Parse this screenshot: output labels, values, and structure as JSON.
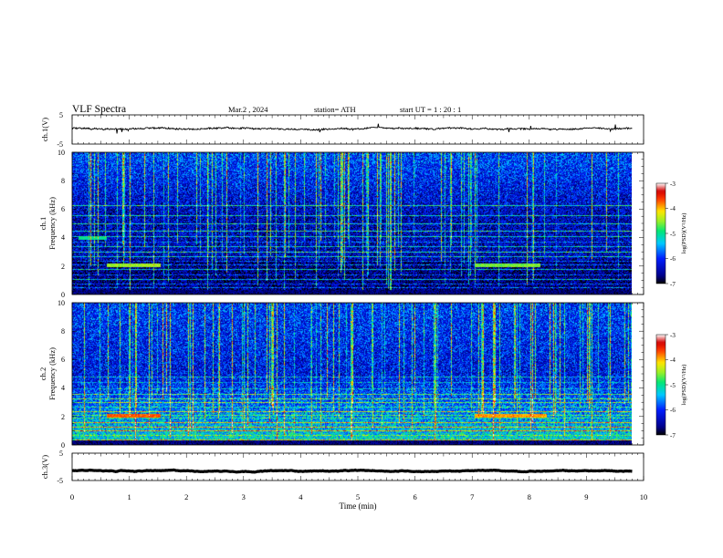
{
  "header": {
    "title": "VLF  Spectra",
    "date": "Mar.2  , 2024",
    "station": "station= ATH",
    "start": "start  UT  =   1  : 20 : 1"
  },
  "chart_data": [
    {
      "id": "ch1-waveform",
      "type": "line",
      "ylabel": "ch.1(V)",
      "ylim": [
        -5,
        5
      ],
      "yticks": [
        "5",
        "-5"
      ],
      "xlim": [
        0,
        10
      ],
      "data_extent_min": [
        0,
        9.8
      ],
      "baseline_v": 0.3,
      "noise_amplitude_v": 0.5
    },
    {
      "id": "ch1-spectrogram",
      "type": "heatmap",
      "ylabel": "ch.1\nFrequency  (kHz)",
      "ylim": [
        0,
        10
      ],
      "yticks": [
        "0",
        "2",
        "4",
        "6",
        "8",
        "10"
      ],
      "xlim": [
        0,
        10
      ],
      "colorbar": {
        "label": "log(PSD)(V²/Hz)",
        "range": [
          -7,
          -3
        ],
        "ticks": [
          "-3",
          "-4",
          "-5",
          "-6",
          "-7"
        ]
      },
      "horizontal_lines_khz": [
        0.3,
        0.5,
        0.8,
        1.1,
        1.4,
        1.8,
        2.1,
        2.4,
        2.7,
        3.0,
        3.4,
        3.7,
        4.1,
        4.5,
        5.0,
        5.6,
        6.3
      ],
      "bright_segments": [
        {
          "t_min": [
            0.6,
            1.55
          ],
          "khz": 2.1,
          "level": -4.5
        },
        {
          "t_min": [
            7.05,
            8.2
          ],
          "khz": 2.1,
          "level": -4.6
        },
        {
          "t_min": [
            0.1,
            0.6
          ],
          "khz": 4.0,
          "level": -5.0
        }
      ]
    },
    {
      "id": "ch2-spectrogram",
      "type": "heatmap",
      "ylabel": "ch.2\nFrequency  (kHz)",
      "ylim": [
        0,
        10
      ],
      "yticks": [
        "0",
        "2",
        "4",
        "6",
        "8",
        "10"
      ],
      "xlim": [
        0,
        10
      ],
      "colorbar": {
        "label": "log(PSD)(V²/Hz)",
        "range": [
          -7,
          -3
        ],
        "ticks": [
          "-3",
          "-4",
          "-5",
          "-6",
          "-7"
        ]
      },
      "horizontal_lines_khz": [
        0.4,
        0.7,
        1.0,
        1.3,
        1.6,
        1.9,
        2.1,
        2.4,
        2.7,
        3.0,
        3.3,
        3.6,
        4.0,
        4.4,
        4.8
      ],
      "bright_segments": [
        {
          "t_min": [
            0.6,
            1.55
          ],
          "khz": 2.1,
          "level": -3.7
        },
        {
          "t_min": [
            7.05,
            8.3
          ],
          "khz": 2.1,
          "level": -3.9
        }
      ]
    },
    {
      "id": "ch3-waveform",
      "type": "line",
      "ylabel": "ch.3(V)",
      "ylim": [
        -5,
        5
      ],
      "yticks": [
        "5",
        "-5"
      ],
      "xlim": [
        0,
        10
      ],
      "data_extent_min": [
        0,
        9.8
      ],
      "baseline_v": -1.5,
      "noise_amplitude_v": 0.05
    }
  ],
  "xaxis": {
    "label": "Time  (min)",
    "ticks": [
      "0",
      "1",
      "2",
      "3",
      "4",
      "5",
      "6",
      "7",
      "8",
      "9",
      "10"
    ]
  },
  "colors": {
    "background": "#000080",
    "trace": "#000000"
  }
}
